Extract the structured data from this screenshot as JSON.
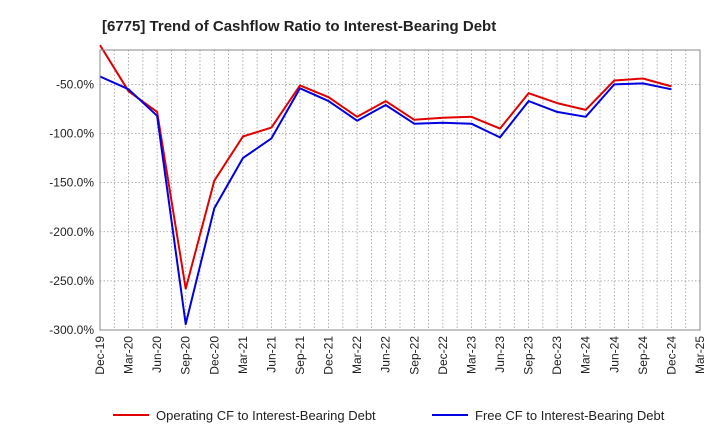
{
  "chart_data": {
    "type": "line",
    "title": "[6775]  Trend of Cashflow Ratio to Interest-Bearing Debt",
    "xlabel": "",
    "ylabel": "",
    "x_tick_labels": [
      "Dec-19",
      "Mar-20",
      "Jun-20",
      "Sep-20",
      "Dec-20",
      "Mar-21",
      "Jun-21",
      "Sep-21",
      "Dec-21",
      "Mar-22",
      "Jun-22",
      "Sep-22",
      "Dec-22",
      "Mar-23",
      "Jun-23",
      "Sep-23",
      "Dec-23",
      "Mar-24",
      "Jun-24",
      "Sep-24",
      "Dec-24",
      "Mar-25"
    ],
    "y_tick_labels": [
      "-50.0%",
      "-100.0%",
      "-150.0%",
      "-200.0%",
      "-250.0%",
      "-300.0%"
    ],
    "y_ticks": [
      -50,
      -100,
      -150,
      -200,
      -250,
      -300
    ],
    "ylim": [
      -300,
      -15
    ],
    "x": [
      "Dec-19",
      "Mar-20",
      "Jun-20",
      "Sep-20",
      "Dec-20",
      "Mar-21",
      "Jun-21",
      "Sep-21",
      "Dec-21",
      "Mar-22",
      "Jun-22",
      "Sep-22",
      "Dec-22",
      "Mar-23",
      "Jun-23",
      "Sep-23",
      "Dec-23",
      "Mar-24",
      "Jun-24",
      "Sep-24",
      "Dec-24"
    ],
    "grid": true,
    "legend_position": "bottom",
    "series": [
      {
        "name": "Operating CF to Interest-Bearing Debt",
        "color": "#e00000",
        "values": [
          -10,
          -57,
          -78,
          -258,
          -148,
          -103,
          -94,
          -51,
          -63,
          -83,
          -67,
          -86,
          -84,
          -83,
          -95,
          -59,
          -69,
          -76,
          -46,
          -44,
          -52
        ]
      },
      {
        "name": "Free CF to Interest-Bearing Debt",
        "color": "#0000e0",
        "values": [
          -42,
          -55,
          -82,
          -294,
          -176,
          -125,
          -105,
          -54,
          -67,
          -87,
          -71,
          -90,
          -89,
          -90,
          -104,
          -67,
          -78,
          -83,
          -50,
          -49,
          -55
        ]
      }
    ]
  }
}
